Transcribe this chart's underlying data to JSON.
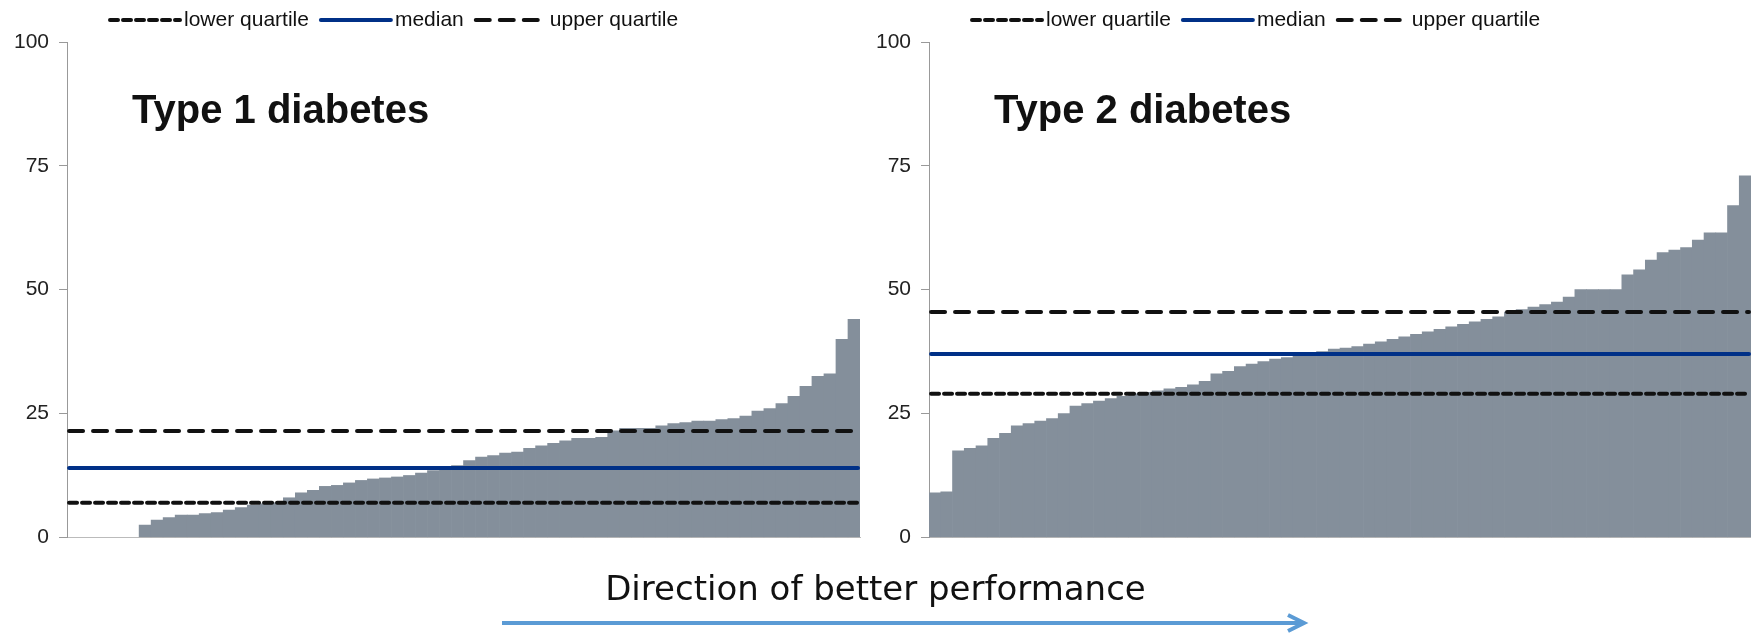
{
  "chart_data": [
    {
      "type": "bar",
      "title": "Type 1 diabetes",
      "categories": [
        null,
        null,
        null,
        null,
        null,
        null,
        null,
        null,
        null,
        null,
        null,
        null,
        null,
        null,
        null,
        null,
        null,
        null,
        null,
        null,
        null,
        null,
        null,
        null,
        null,
        null,
        null,
        null,
        null,
        null,
        null,
        null,
        null,
        null,
        null,
        null,
        null,
        null,
        null,
        null,
        null,
        null,
        null,
        null,
        null,
        null,
        null,
        null,
        null,
        null,
        null,
        null,
        null,
        null,
        null,
        null,
        null,
        null,
        null,
        null,
        null,
        null,
        null,
        null,
        null,
        null
      ],
      "values": [
        null,
        null,
        null,
        null,
        null,
        null,
        2.5,
        3.5,
        4,
        4.5,
        4.5,
        4.8,
        5,
        5.5,
        6,
        6.5,
        6.8,
        7,
        8,
        9,
        9.5,
        10.3,
        10.5,
        11,
        11.5,
        11.8,
        12,
        12.2,
        12.5,
        13,
        13.5,
        14,
        14.5,
        15.5,
        16.2,
        16.5,
        17,
        17.2,
        18,
        18.5,
        19,
        19.5,
        20,
        20,
        20.2,
        21.5,
        22,
        22,
        22,
        22.5,
        23,
        23.2,
        23.5,
        23.5,
        23.8,
        24,
        24.5,
        25.5,
        26,
        27,
        28.5,
        30.5,
        32.5,
        33,
        40,
        44
      ],
      "color": "#848f9b",
      "ylim": [
        0,
        100
      ],
      "yticks": [
        0,
        25,
        50,
        75,
        100
      ],
      "grid": false,
      "legend": "top",
      "ref_lines": [
        {
          "axis": "y",
          "value": 7,
          "label": "lower quartile",
          "color": "#111111",
          "line_style": "dotted"
        },
        {
          "axis": "y",
          "value": 14,
          "label": "median",
          "color": "#003087",
          "line_style": "solid"
        },
        {
          "axis": "y",
          "value": 21.5,
          "label": "upper quartile",
          "color": "#111111",
          "line_style": "dashed"
        }
      ],
      "annotations": [
        "Direction of better performance"
      ]
    },
    {
      "type": "bar",
      "title": "Type 2 diabetes",
      "categories": [
        null,
        null,
        null,
        null,
        null,
        null,
        null,
        null,
        null,
        null,
        null,
        null,
        null,
        null,
        null,
        null,
        null,
        null,
        null,
        null,
        null,
        null,
        null,
        null,
        null,
        null,
        null,
        null,
        null,
        null,
        null,
        null,
        null,
        null,
        null,
        null,
        null,
        null,
        null,
        null,
        null,
        null,
        null,
        null,
        null,
        null,
        null,
        null,
        null,
        null,
        null,
        null,
        null,
        null,
        null,
        null,
        null,
        null,
        null,
        null,
        null,
        null,
        null,
        null,
        null,
        null,
        null,
        null,
        null,
        null
      ],
      "values": [
        9,
        9.2,
        17.5,
        18,
        18.5,
        20,
        21,
        22.5,
        23,
        23.5,
        24,
        25,
        26.5,
        27,
        27.5,
        28,
        28.5,
        29,
        29.3,
        29.6,
        30,
        30.3,
        30.8,
        31.5,
        33,
        33.5,
        34.5,
        35,
        35.5,
        36,
        36.3,
        36.6,
        36.8,
        37.5,
        38,
        38.2,
        38.5,
        39,
        39.5,
        40,
        40.5,
        41,
        41.5,
        42,
        42.5,
        43,
        43.5,
        44,
        44.5,
        45.5,
        46,
        46.5,
        47,
        47.5,
        48.5,
        50,
        50,
        50,
        50,
        53,
        54,
        56,
        57.5,
        58,
        58.5,
        60,
        61.5,
        61.5,
        67,
        73
      ],
      "color": "#848f9b",
      "ylim": [
        0,
        100
      ],
      "yticks": [
        0,
        25,
        50,
        75,
        100
      ],
      "grid": false,
      "legend": "top",
      "ref_lines": [
        {
          "axis": "y",
          "value": 29,
          "label": "lower quartile",
          "color": "#111111",
          "line_style": "dotted"
        },
        {
          "axis": "y",
          "value": 37,
          "label": "median",
          "color": "#003087",
          "line_style": "solid"
        },
        {
          "axis": "y",
          "value": 45.5,
          "label": "upper quartile",
          "color": "#111111",
          "line_style": "dashed"
        }
      ]
    }
  ]
}
